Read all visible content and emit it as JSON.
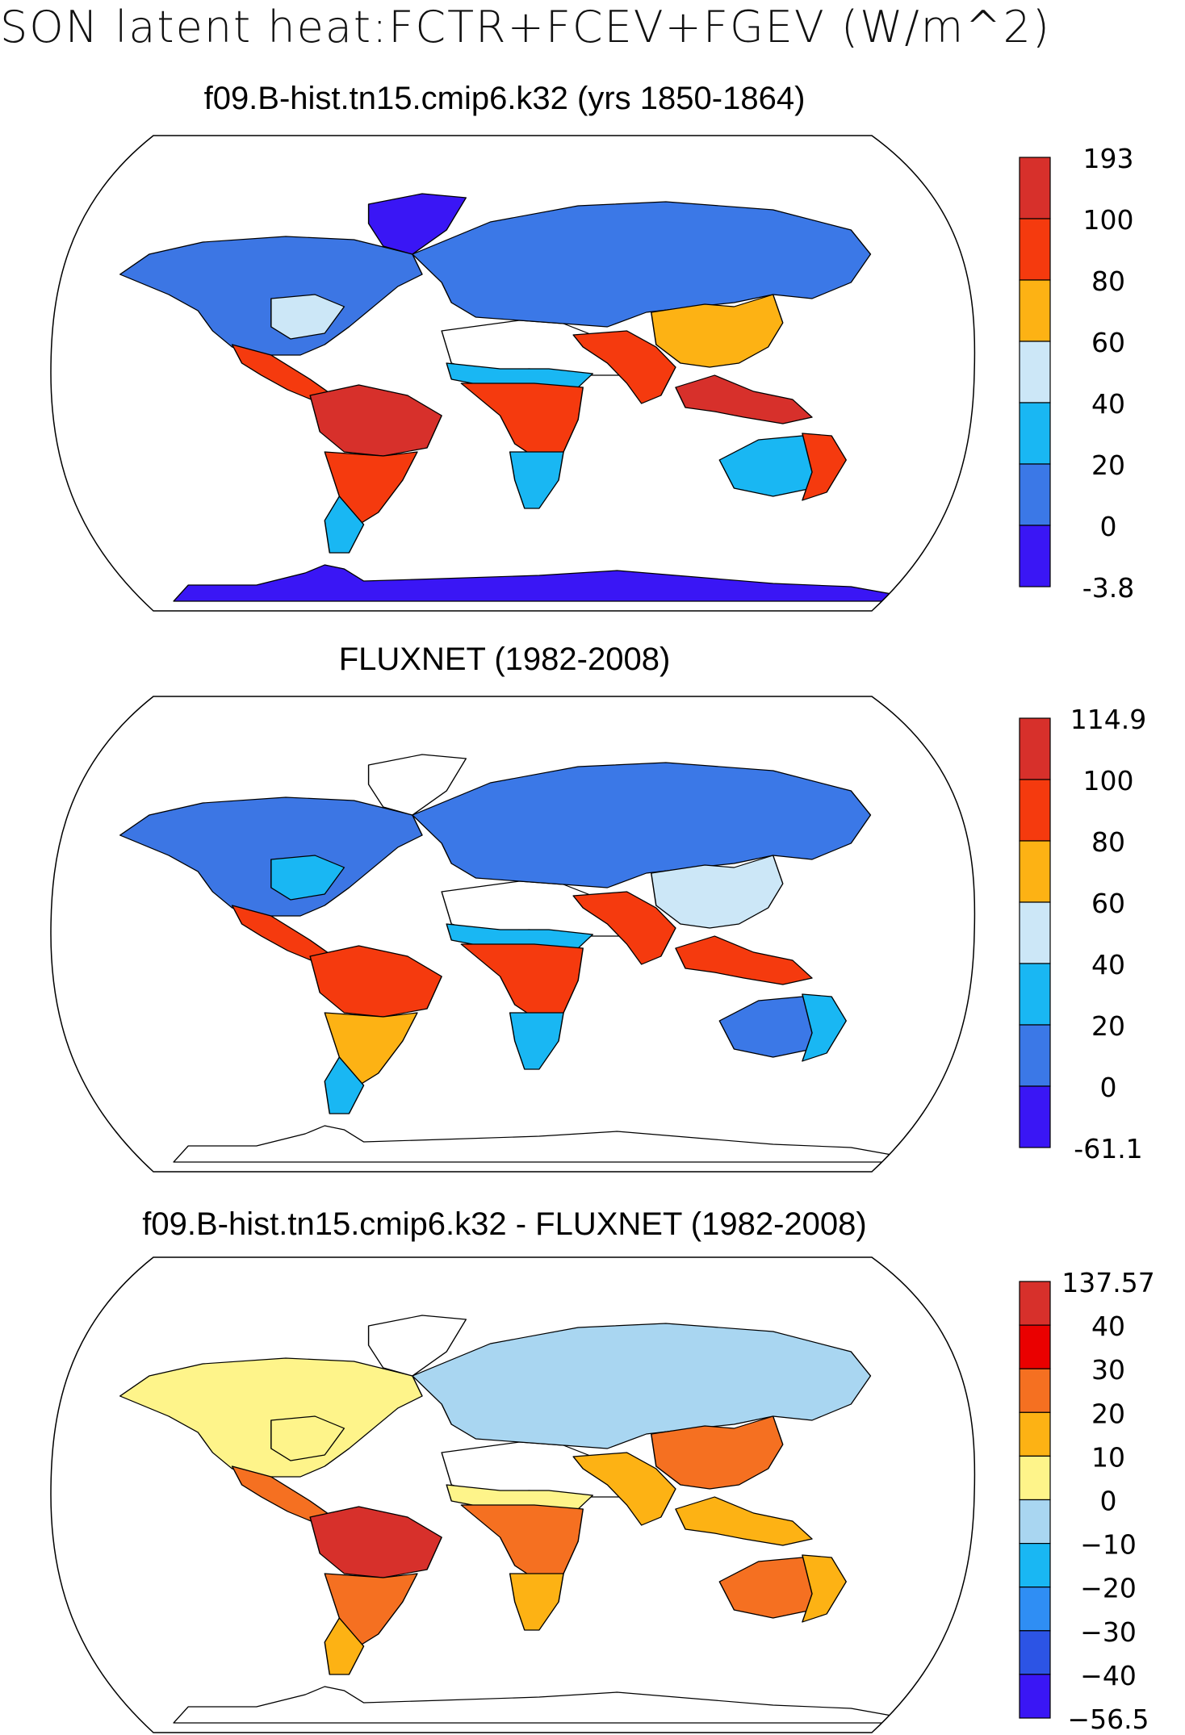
{
  "title": "SON latent heat:FCTR+FCEV+FGEV (W/m^2)",
  "panels": [
    {
      "title": "f09.B-hist.tn15.cmip6.k32 (yrs 1850-1864)",
      "legend_labels": [
        "193",
        "100",
        "80",
        "60",
        "40",
        "20",
        "0",
        "-3.8"
      ],
      "legend_colors": [
        "#d7302b",
        "#f53a0e",
        "#fdb214",
        "#cce7f7",
        "#19b7f3",
        "#3b78e7",
        "#3a16f5"
      ],
      "ocean_color": "#ffffff",
      "land_regions": {
        "north_america": "#3c76e4",
        "greenland": "#3a16f5",
        "us_east": "#cce7f7",
        "mexico_central_america": "#f53a0e",
        "amazon": "#d7302b",
        "south_america_south": "#f53a0e",
        "patagonia": "#19b7f3",
        "sahara_arabia": "#ffffff",
        "sahel": "#19b7f3",
        "central_africa": "#f53a0e",
        "southern_africa": "#19b7f3",
        "europe_siberia": "#3b78e7",
        "south_asia": "#f53a0e",
        "east_asia": "#fdb214",
        "maritime_continent": "#d7302b",
        "australia_interior": "#19b7f3",
        "australia_east": "#f53a0e",
        "antarctica": "#3a16f5"
      }
    },
    {
      "title": "FLUXNET (1982-2008)",
      "legend_labels": [
        "114.9",
        "100",
        "80",
        "60",
        "40",
        "20",
        "0",
        "-61.1"
      ],
      "legend_colors": [
        "#d7302b",
        "#f53a0e",
        "#fdb214",
        "#cce7f7",
        "#19b7f3",
        "#3b78e7",
        "#3a16f5"
      ],
      "ocean_color": "#ffffff",
      "land_regions": {
        "north_america": "#3c76e4",
        "greenland": "#ffffff",
        "us_east": "#19b7f3",
        "mexico_central_america": "#f53a0e",
        "amazon": "#f53a0e",
        "south_america_south": "#fdb214",
        "patagonia": "#19b7f3",
        "sahara_arabia": "#ffffff",
        "sahel": "#19b7f3",
        "central_africa": "#f53a0e",
        "southern_africa": "#19b7f3",
        "europe_siberia": "#3b78e7",
        "south_asia": "#f53a0e",
        "east_asia": "#cce7f7",
        "maritime_continent": "#f53a0e",
        "australia_interior": "#3b78e7",
        "australia_east": "#19b7f3",
        "antarctica": "#ffffff"
      }
    },
    {
      "title": "f09.B-hist.tn15.cmip6.k32 - FLUXNET (1982-2008)",
      "legend_labels": [
        "137.57",
        "40",
        "30",
        "20",
        "10",
        "0",
        "−10",
        "−20",
        "−30",
        "−40",
        "−56.5"
      ],
      "legend_colors": [
        "#d7302b",
        "#ea0000",
        "#f57021",
        "#fdb214",
        "#fef48a",
        "#a9d6f1",
        "#19b7f3",
        "#2f8ef4",
        "#2c54e5",
        "#3a16f5"
      ],
      "ocean_color": "#ffffff",
      "land_regions": {
        "north_america": "#fef48a",
        "greenland": "#ffffff",
        "us_east": "#fef48a",
        "mexico_central_america": "#f57021",
        "amazon": "#d7302b",
        "south_america_south": "#f57021",
        "patagonia": "#fdb214",
        "sahara_arabia": "#ffffff",
        "sahel": "#fef48a",
        "central_africa": "#f57021",
        "southern_africa": "#fdb214",
        "europe_siberia": "#a9d6f1",
        "south_asia": "#fdb214",
        "east_asia": "#f57021",
        "maritime_continent": "#fdb214",
        "australia_interior": "#f57021",
        "australia_east": "#fdb214",
        "antarctica": "#ffffff"
      }
    }
  ]
}
